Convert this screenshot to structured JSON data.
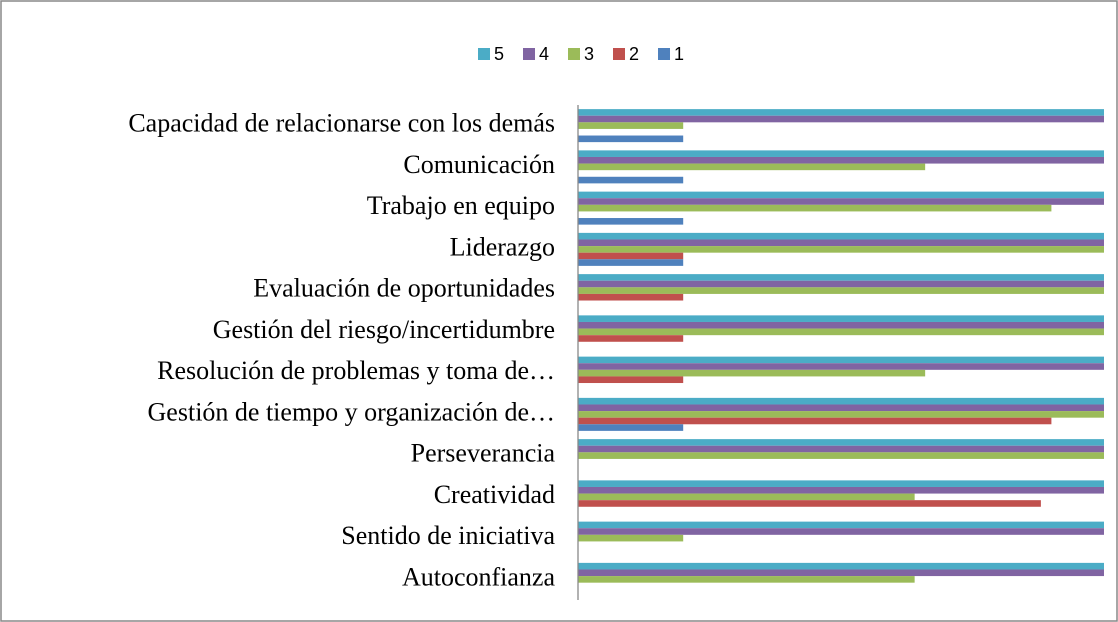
{
  "chart_data": {
    "type": "barh",
    "categories": [
      "Capacidad de relacionarse con los demás",
      "Comunicación",
      "Trabajo en equipo",
      "Liderazgo",
      "Evaluación de oportunidades",
      "Gestión del riesgo/incertidumbre",
      "Resolución de problemas y toma de…",
      "Gestión de tiempo y organización de…",
      "Perseverancia",
      "Creatividad",
      "Sentido de iniciativa",
      "Autoconfianza"
    ],
    "series": [
      {
        "name": "5",
        "color": "#4bacc6",
        "values": [
          5,
          5,
          5,
          5,
          5,
          5,
          5,
          5,
          5,
          5,
          5,
          5
        ]
      },
      {
        "name": "4",
        "color": "#8064a2",
        "values": [
          5,
          5,
          5,
          5,
          5,
          5,
          5,
          5,
          5,
          5,
          5,
          5
        ]
      },
      {
        "name": "3",
        "color": "#9bbb59",
        "values": [
          1,
          3.3,
          4.5,
          5,
          5,
          5,
          3.3,
          5,
          5,
          3.2,
          1,
          3.2
        ]
      },
      {
        "name": "2",
        "color": "#c0504d",
        "values": [
          0,
          0,
          0,
          1,
          1,
          1,
          1,
          4.5,
          0,
          4.4,
          0,
          0
        ]
      },
      {
        "name": "1",
        "color": "#4f81bd",
        "values": [
          1,
          1,
          1,
          1,
          0,
          0,
          0,
          1,
          0,
          0,
          0,
          0
        ]
      }
    ],
    "xlim": [
      0,
      5
    ],
    "legend": "top"
  }
}
